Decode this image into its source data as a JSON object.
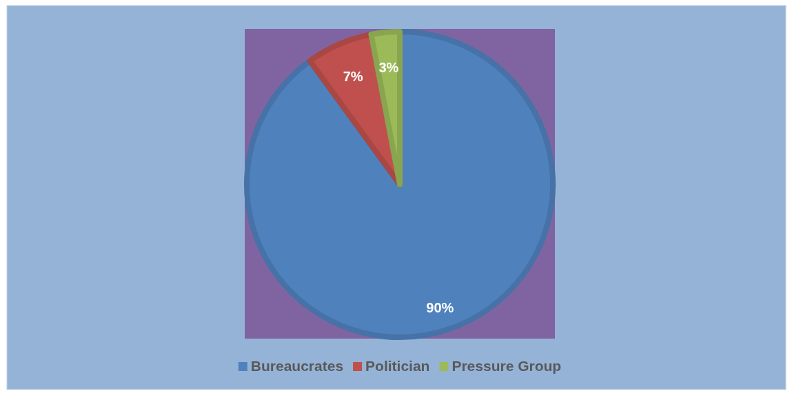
{
  "chart_data": {
    "type": "pie",
    "categories": [
      "Bureaucrates",
      "Politician",
      "Pressure Group"
    ],
    "values": [
      90,
      7,
      3
    ],
    "colors": [
      "#4f81bd",
      "#c0504d",
      "#9bbb59"
    ],
    "value_labels": [
      "90%",
      "7%",
      "3%"
    ],
    "legend": "bottom"
  }
}
